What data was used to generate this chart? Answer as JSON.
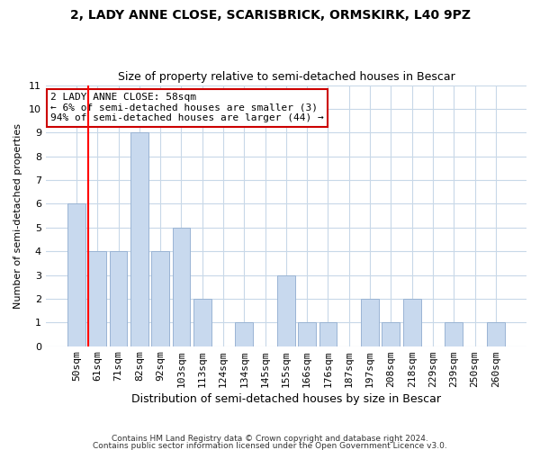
{
  "title": "2, LADY ANNE CLOSE, SCARISBRICK, ORMSKIRK, L40 9PZ",
  "subtitle": "Size of property relative to semi-detached houses in Bescar",
  "xlabel": "Distribution of semi-detached houses by size in Bescar",
  "ylabel": "Number of semi-detached properties",
  "categories": [
    "50sqm",
    "61sqm",
    "71sqm",
    "82sqm",
    "92sqm",
    "103sqm",
    "113sqm",
    "124sqm",
    "134sqm",
    "145sqm",
    "155sqm",
    "166sqm",
    "176sqm",
    "187sqm",
    "197sqm",
    "208sqm",
    "218sqm",
    "229sqm",
    "239sqm",
    "250sqm",
    "260sqm"
  ],
  "values": [
    6,
    4,
    4,
    9,
    4,
    5,
    2,
    0,
    1,
    0,
    3,
    1,
    1,
    0,
    2,
    1,
    2,
    0,
    1,
    0,
    1
  ],
  "bar_color": "#c8d9ee",
  "bar_edge_color": "#9ab4d4",
  "red_line_x": 0.575,
  "annotation_title": "2 LADY ANNE CLOSE: 58sqm",
  "annotation_line1": "← 6% of semi-detached houses are smaller (3)",
  "annotation_line2": "94% of semi-detached houses are larger (44) →",
  "annotation_box_facecolor": "#ffffff",
  "annotation_box_edgecolor": "#cc0000",
  "ylim": [
    0,
    11
  ],
  "yticks": [
    0,
    1,
    2,
    3,
    4,
    5,
    6,
    7,
    8,
    9,
    10,
    11
  ],
  "footer1": "Contains HM Land Registry data © Crown copyright and database right 2024.",
  "footer2": "Contains public sector information licensed under the Open Government Licence v3.0.",
  "grid_color": "#c8d8e8",
  "bg_color": "#ffffff",
  "title_fontsize": 10,
  "subtitle_fontsize": 9,
  "xlabel_fontsize": 9,
  "ylabel_fontsize": 8,
  "tick_fontsize": 8,
  "ann_fontsize": 8
}
